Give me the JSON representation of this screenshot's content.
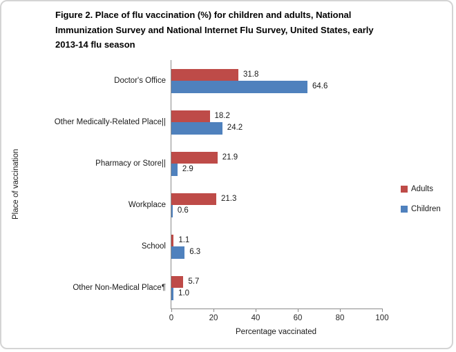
{
  "header": {
    "title_lines": [
      "Figure 2. Place of flu vaccination (%) for children and adults, National",
      "Immunization Survey and National Internet Flu Survey, United States, early",
      "2013-14 flu season"
    ]
  },
  "chart_data": {
    "type": "bar",
    "orientation": "horizontal",
    "title": "Figure 2. Place of flu vaccination (%) for children and adults, National Immunization Survey and National Internet Flu Survey, United States, early 2013-14 flu season",
    "categories": [
      "Doctor's Office",
      "Other Medically-Related Place||",
      "Pharmacy or Store||",
      "Workplace",
      "School",
      "Other Non-Medical Place¶"
    ],
    "series": [
      {
        "name": "Adults",
        "color": "#be4b48",
        "values": [
          31.8,
          18.2,
          21.9,
          21.3,
          1.1,
          5.7
        ]
      },
      {
        "name": "Children",
        "color": "#4f81bd",
        "values": [
          64.6,
          24.2,
          2.9,
          0.6,
          6.3,
          1.0
        ]
      }
    ],
    "xlabel": "Percentage vaccinated",
    "ylabel": "Place of vaccination",
    "xlim": [
      0,
      100
    ],
    "xticks": [
      0,
      20,
      40,
      60,
      80,
      100
    ],
    "legend_position": "right",
    "grid": false,
    "data_labels": true,
    "axis_color": "#8a8a8a"
  }
}
